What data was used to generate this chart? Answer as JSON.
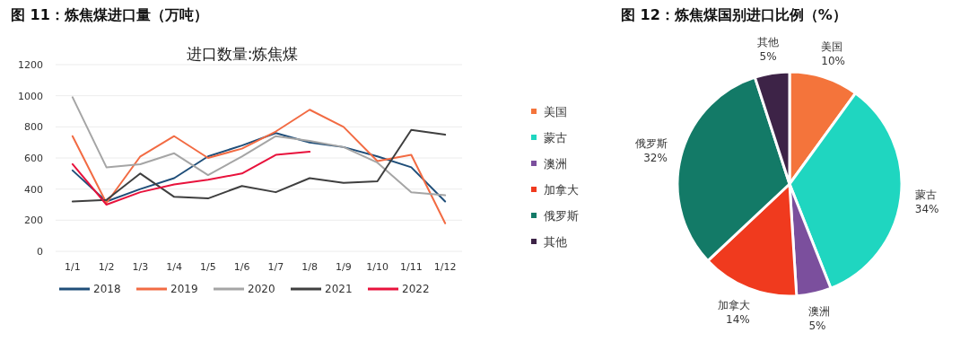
{
  "chart_data": [
    {
      "type": "line",
      "title": "图 11：炼焦煤进口量（万吨）",
      "subtitle": "进口数量:炼焦煤",
      "categories": [
        "1/1",
        "1/2",
        "1/3",
        "1/4",
        "1/5",
        "1/6",
        "1/7",
        "1/8",
        "1/9",
        "1/10",
        "1/11",
        "1/12"
      ],
      "ylim": [
        0,
        1200
      ],
      "yticks": [
        0,
        200,
        400,
        600,
        800,
        1000,
        1200
      ],
      "grid": "y",
      "legend": "bottom",
      "series": [
        {
          "name": "2018",
          "color": "#1f4e79",
          "values": [
            520,
            320,
            400,
            470,
            610,
            680,
            760,
            700,
            670,
            610,
            540,
            320
          ]
        },
        {
          "name": "2019",
          "color": "#f26b43",
          "values": [
            740,
            310,
            610,
            740,
            600,
            660,
            770,
            910,
            800,
            580,
            620,
            180
          ]
        },
        {
          "name": "2020",
          "color": "#a5a5a5",
          "values": [
            990,
            540,
            560,
            630,
            490,
            610,
            740,
            710,
            670,
            570,
            380,
            360
          ]
        },
        {
          "name": "2021",
          "color": "#3f3f3f",
          "values": [
            320,
            330,
            500,
            350,
            340,
            420,
            380,
            470,
            440,
            450,
            780,
            750
          ]
        },
        {
          "name": "2022",
          "color": "#e8123c",
          "values": [
            560,
            300,
            380,
            430,
            460,
            500,
            620,
            640,
            null,
            null,
            null,
            null
          ]
        }
      ]
    },
    {
      "type": "pie",
      "title": "图 12：炼焦煤国别进口比例（%）",
      "categories": [
        "美国",
        "蒙古",
        "澳洲",
        "加拿大",
        "俄罗斯",
        "其他"
      ],
      "values": [
        10,
        34,
        5,
        14,
        32,
        5
      ],
      "colors": [
        "#f4743b",
        "#1fd6c0",
        "#7b4f9d",
        "#f03a1e",
        "#137a67",
        "#3d2347"
      ],
      "legend": "left",
      "value_labels": [
        "10%",
        "34%",
        "5%",
        "14%",
        "32%",
        "5%"
      ]
    }
  ]
}
